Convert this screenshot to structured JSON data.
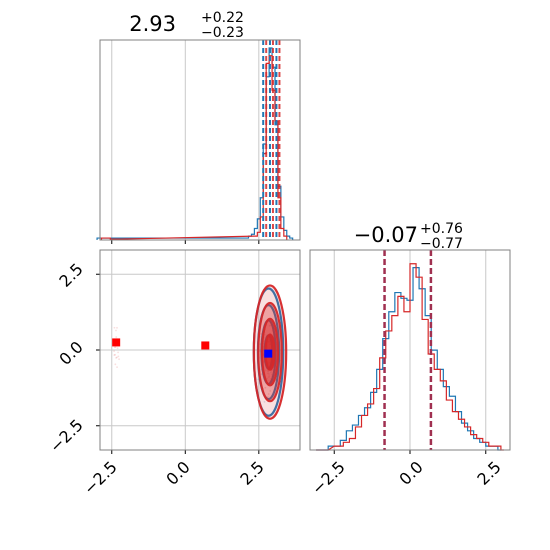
{
  "chart_data": [
    {
      "type": "histogram",
      "panel": "marginal-x",
      "title": {
        "value": "2.93",
        "plus": "+0.22",
        "minus": "−0.23"
      },
      "xlim": [
        -2.9,
        3.9
      ],
      "grid": true,
      "quantile_lines": [
        2.7,
        2.93,
        3.15
      ],
      "series": [
        {
          "color": "#1f77b4",
          "bins": [
            [
              -3.0,
              0.01
            ],
            [
              2.05,
              0.01
            ],
            [
              2.15,
              0.02
            ],
            [
              2.25,
              0.03
            ],
            [
              2.35,
              0.06
            ],
            [
              2.45,
              0.11
            ],
            [
              2.55,
              0.22
            ],
            [
              2.65,
              0.5
            ],
            [
              2.75,
              0.85
            ],
            [
              2.85,
              1.0
            ],
            [
              2.95,
              0.9
            ],
            [
              3.05,
              0.6
            ],
            [
              3.15,
              0.28
            ],
            [
              3.25,
              0.12
            ],
            [
              3.35,
              0.05
            ],
            [
              3.45,
              0.02
            ],
            [
              3.55,
              0.01
            ]
          ]
        },
        {
          "color": "#d62728",
          "bins": [
            [
              -2.85,
              0.01
            ],
            [
              -2.55,
              0.005
            ],
            [
              2.35,
              0.02
            ],
            [
              2.45,
              0.04
            ],
            [
              2.55,
              0.12
            ],
            [
              2.65,
              0.45
            ],
            [
              2.75,
              0.92
            ],
            [
              2.85,
              0.96
            ],
            [
              2.95,
              0.78
            ],
            [
              3.05,
              0.62
            ],
            [
              3.15,
              0.22
            ],
            [
              3.25,
              0.06
            ],
            [
              3.35,
              0.02
            ]
          ]
        }
      ]
    },
    {
      "type": "scatter-contour",
      "panel": "joint",
      "xlim": [
        -2.9,
        3.9
      ],
      "ylim": [
        -3.3,
        3.3
      ],
      "x_ticks": [
        "−2.5",
        "0.0",
        "2.5"
      ],
      "y_ticks": [
        "2.5",
        "0.0",
        "−2.5"
      ],
      "grid": true,
      "markers": [
        {
          "x": -2.35,
          "y": 0.25,
          "color": "#ff0000"
        },
        {
          "x": 0.68,
          "y": 0.15,
          "color": "#ff0000"
        },
        {
          "x": 2.82,
          "y": -0.12,
          "color": "#0000ff"
        }
      ],
      "contours": [
        {
          "color": "#1f77b4",
          "center": [
            2.83,
            -0.07
          ],
          "sx": [
            0.5,
            0.36,
            0.24,
            0.13
          ],
          "sy": [
            2.1,
            1.55,
            1.05,
            0.55
          ]
        },
        {
          "color": "#d62728",
          "center": [
            2.88,
            -0.07
          ],
          "sx": [
            0.55,
            0.4,
            0.27,
            0.15
          ],
          "sy": [
            2.2,
            1.62,
            1.1,
            0.58
          ]
        }
      ]
    },
    {
      "type": "histogram",
      "panel": "marginal-y",
      "title": {
        "value": "−0.07",
        "plus": "+0.76",
        "minus": "−0.77"
      },
      "xlim": [
        -3.3,
        3.3
      ],
      "x_ticks": [
        "−2.5",
        "0.0",
        "2.5"
      ],
      "grid": true,
      "quantile_lines": [
        -0.84,
        -0.07,
        0.69
      ],
      "series": [
        {
          "color": "#1f77b4",
          "bins": [
            [
              -3.1,
              0.0
            ],
            [
              -2.7,
              0.02
            ],
            [
              -2.3,
              0.05
            ],
            [
              -2.1,
              0.1
            ],
            [
              -1.9,
              0.13
            ],
            [
              -1.7,
              0.18
            ],
            [
              -1.5,
              0.22
            ],
            [
              -1.3,
              0.3
            ],
            [
              -1.1,
              0.42
            ],
            [
              -0.9,
              0.58
            ],
            [
              -0.7,
              0.72
            ],
            [
              -0.5,
              0.82
            ],
            [
              -0.3,
              0.79
            ],
            [
              -0.1,
              0.78
            ],
            [
              0.1,
              0.95
            ],
            [
              0.3,
              0.84
            ],
            [
              0.5,
              0.7
            ],
            [
              0.7,
              0.52
            ],
            [
              0.9,
              0.42
            ],
            [
              1.1,
              0.33
            ],
            [
              1.3,
              0.28
            ],
            [
              1.5,
              0.2
            ],
            [
              1.7,
              0.14
            ],
            [
              1.9,
              0.1
            ],
            [
              2.1,
              0.06
            ],
            [
              2.3,
              0.04
            ],
            [
              2.5,
              0.02
            ],
            [
              2.9,
              0.0
            ]
          ]
        },
        {
          "color": "#d62728",
          "bins": [
            [
              -3.1,
              0.0
            ],
            [
              -2.5,
              0.02
            ],
            [
              -2.2,
              0.04
            ],
            [
              -2.0,
              0.06
            ],
            [
              -1.8,
              0.12
            ],
            [
              -1.6,
              0.18
            ],
            [
              -1.4,
              0.24
            ],
            [
              -1.2,
              0.32
            ],
            [
              -1.0,
              0.48
            ],
            [
              -0.8,
              0.62
            ],
            [
              -0.6,
              0.7
            ],
            [
              -0.4,
              0.8
            ],
            [
              -0.2,
              0.72
            ],
            [
              0.0,
              0.97
            ],
            [
              0.2,
              0.9
            ],
            [
              0.4,
              0.68
            ],
            [
              0.6,
              0.5
            ],
            [
              0.8,
              0.42
            ],
            [
              1.0,
              0.36
            ],
            [
              1.2,
              0.26
            ],
            [
              1.4,
              0.2
            ],
            [
              1.6,
              0.16
            ],
            [
              1.8,
              0.12
            ],
            [
              2.0,
              0.08
            ],
            [
              2.2,
              0.06
            ],
            [
              2.4,
              0.04
            ],
            [
              2.6,
              0.02
            ],
            [
              3.0,
              0.0
            ]
          ]
        }
      ]
    }
  ],
  "colors": {
    "blue": "#1f77b4",
    "red": "#d62728",
    "quantile": "#a03050",
    "grid": "#c8c8c8",
    "frame": "#808080"
  }
}
